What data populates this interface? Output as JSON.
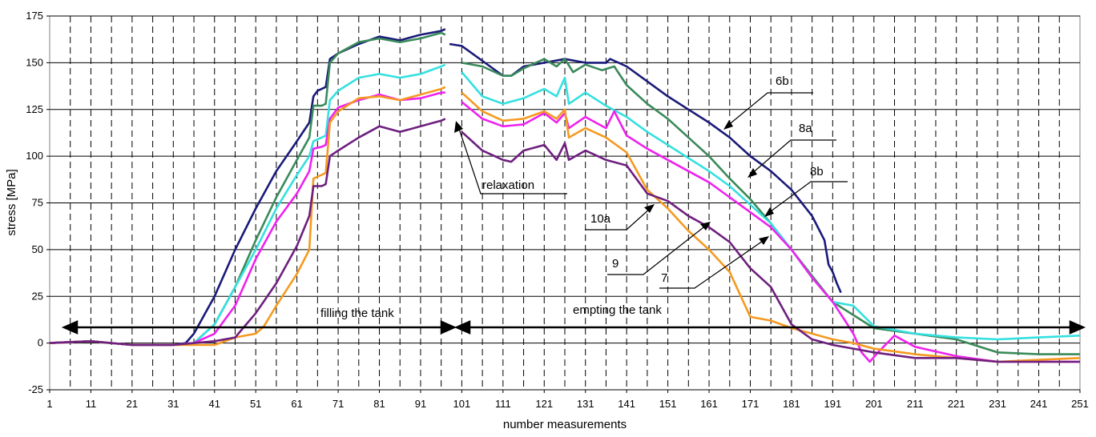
{
  "chart_data": {
    "type": "line",
    "title": "",
    "xlabel": "number measurements",
    "ylabel": "stress [MPa]",
    "xlim": [
      1,
      251
    ],
    "ylim": [
      -25,
      175
    ],
    "x_ticks": [
      1,
      11,
      21,
      31,
      41,
      51,
      61,
      71,
      81,
      91,
      101,
      111,
      121,
      131,
      141,
      151,
      161,
      171,
      181,
      191,
      201,
      211,
      221,
      231,
      241,
      251
    ],
    "y_ticks": [
      -25,
      0,
      25,
      50,
      75,
      100,
      125,
      150,
      175
    ],
    "grid": {
      "horizontal": "solid",
      "vertical": "dashed"
    },
    "series": [
      {
        "name": "6b",
        "color": "#1a1a7a",
        "points": [
          [
            1,
            0
          ],
          [
            11,
            1
          ],
          [
            21,
            -1
          ],
          [
            31,
            -1
          ],
          [
            34,
            0
          ],
          [
            36,
            5
          ],
          [
            41,
            25
          ],
          [
            46,
            50
          ],
          [
            51,
            72
          ],
          [
            56,
            92
          ],
          [
            61,
            108
          ],
          [
            64,
            118
          ],
          [
            65,
            132
          ],
          [
            66,
            135
          ],
          [
            67,
            136
          ],
          [
            68,
            137
          ],
          [
            69,
            152
          ],
          [
            71,
            155
          ],
          [
            76,
            160
          ],
          [
            81,
            164
          ],
          [
            86,
            162
          ],
          [
            91,
            165
          ],
          [
            96,
            167
          ],
          [
            97,
            168
          ],
          [
            null,
            null
          ],
          [
            98,
            160
          ],
          [
            101,
            159
          ],
          [
            106,
            151
          ],
          [
            111,
            143
          ],
          [
            113,
            143
          ],
          [
            116,
            148
          ],
          [
            121,
            150
          ],
          [
            126,
            152
          ],
          [
            131,
            150
          ],
          [
            136,
            150
          ],
          [
            137,
            152
          ],
          [
            141,
            148
          ],
          [
            146,
            140
          ],
          [
            151,
            132
          ],
          [
            156,
            125
          ],
          [
            161,
            118
          ],
          [
            166,
            110
          ],
          [
            171,
            100
          ],
          [
            176,
            92
          ],
          [
            181,
            82
          ],
          [
            186,
            68
          ],
          [
            189,
            55
          ],
          [
            190,
            42
          ],
          [
            191,
            38
          ],
          [
            192,
            32
          ],
          [
            193,
            27
          ]
        ]
      },
      {
        "name": "8a",
        "color": "#3a8a5a",
        "points": [
          [
            1,
            0
          ],
          [
            11,
            1
          ],
          [
            21,
            -1
          ],
          [
            31,
            -1
          ],
          [
            36,
            0
          ],
          [
            41,
            10
          ],
          [
            46,
            30
          ],
          [
            51,
            55
          ],
          [
            56,
            78
          ],
          [
            61,
            98
          ],
          [
            64,
            110
          ],
          [
            65,
            127
          ],
          [
            67,
            127
          ],
          [
            68,
            128
          ],
          [
            69,
            150
          ],
          [
            71,
            155
          ],
          [
            76,
            161
          ],
          [
            81,
            163
          ],
          [
            86,
            161
          ],
          [
            91,
            163
          ],
          [
            96,
            166
          ],
          [
            97,
            165
          ],
          [
            null,
            null
          ],
          [
            101,
            150
          ],
          [
            106,
            148
          ],
          [
            111,
            143
          ],
          [
            113,
            143
          ],
          [
            116,
            147
          ],
          [
            121,
            152
          ],
          [
            124,
            148
          ],
          [
            126,
            152
          ],
          [
            128,
            145
          ],
          [
            131,
            149
          ],
          [
            135,
            146
          ],
          [
            138,
            148
          ],
          [
            141,
            138
          ],
          [
            146,
            128
          ],
          [
            151,
            120
          ],
          [
            156,
            110
          ],
          [
            161,
            100
          ],
          [
            166,
            88
          ],
          [
            171,
            77
          ],
          [
            176,
            64
          ],
          [
            181,
            50
          ],
          [
            186,
            36
          ],
          [
            191,
            22
          ],
          [
            196,
            15
          ],
          [
            201,
            8
          ],
          [
            211,
            5
          ],
          [
            221,
            2
          ],
          [
            231,
            -5
          ],
          [
            241,
            -6
          ],
          [
            251,
            -6
          ]
        ]
      },
      {
        "name": "8b",
        "color": "#35e0e0",
        "points": [
          [
            1,
            0
          ],
          [
            11,
            1
          ],
          [
            21,
            -1
          ],
          [
            31,
            -1
          ],
          [
            36,
            0
          ],
          [
            41,
            10
          ],
          [
            46,
            30
          ],
          [
            51,
            50
          ],
          [
            56,
            72
          ],
          [
            61,
            90
          ],
          [
            64,
            100
          ],
          [
            65,
            108
          ],
          [
            67,
            110
          ],
          [
            68,
            111
          ],
          [
            69,
            130
          ],
          [
            71,
            135
          ],
          [
            76,
            142
          ],
          [
            81,
            144
          ],
          [
            86,
            142
          ],
          [
            91,
            144
          ],
          [
            96,
            148
          ],
          [
            97,
            149
          ],
          [
            null,
            null
          ],
          [
            101,
            145
          ],
          [
            106,
            132
          ],
          [
            111,
            128
          ],
          [
            116,
            131
          ],
          [
            121,
            136
          ],
          [
            124,
            132
          ],
          [
            126,
            142
          ],
          [
            127,
            128
          ],
          [
            131,
            134
          ],
          [
            136,
            127
          ],
          [
            141,
            121
          ],
          [
            146,
            113
          ],
          [
            151,
            106
          ],
          [
            156,
            99
          ],
          [
            161,
            92
          ],
          [
            166,
            84
          ],
          [
            171,
            74
          ],
          [
            176,
            64
          ],
          [
            181,
            50
          ],
          [
            186,
            35
          ],
          [
            191,
            22
          ],
          [
            196,
            20
          ],
          [
            201,
            9
          ],
          [
            211,
            5
          ],
          [
            221,
            3
          ],
          [
            231,
            2
          ],
          [
            241,
            3
          ],
          [
            251,
            4
          ]
        ]
      },
      {
        "name": "10a",
        "color": "#ee22ee",
        "points": [
          [
            1,
            0
          ],
          [
            11,
            1
          ],
          [
            21,
            -1
          ],
          [
            31,
            -1
          ],
          [
            36,
            0
          ],
          [
            41,
            5
          ],
          [
            46,
            20
          ],
          [
            51,
            45
          ],
          [
            56,
            65
          ],
          [
            61,
            80
          ],
          [
            64,
            92
          ],
          [
            65,
            104
          ],
          [
            67,
            105
          ],
          [
            68,
            106
          ],
          [
            69,
            120
          ],
          [
            71,
            126
          ],
          [
            76,
            130
          ],
          [
            81,
            133
          ],
          [
            86,
            130
          ],
          [
            91,
            131
          ],
          [
            96,
            134
          ],
          [
            97,
            134
          ],
          [
            null,
            null
          ],
          [
            101,
            129
          ],
          [
            106,
            120
          ],
          [
            111,
            116
          ],
          [
            116,
            117
          ],
          [
            121,
            123
          ],
          [
            124,
            118
          ],
          [
            126,
            123
          ],
          [
            127,
            115
          ],
          [
            131,
            121
          ],
          [
            136,
            115
          ],
          [
            138,
            124
          ],
          [
            141,
            111
          ],
          [
            146,
            104
          ],
          [
            151,
            98
          ],
          [
            156,
            92
          ],
          [
            161,
            86
          ],
          [
            166,
            78
          ],
          [
            171,
            70
          ],
          [
            176,
            62
          ],
          [
            181,
            50
          ],
          [
            186,
            35
          ],
          [
            191,
            22
          ],
          [
            194,
            12
          ],
          [
            196,
            5
          ],
          [
            198,
            -5
          ],
          [
            200,
            -10
          ],
          [
            202,
            -5
          ],
          [
            206,
            4
          ],
          [
            211,
            -2
          ],
          [
            221,
            -7
          ],
          [
            231,
            -10
          ],
          [
            241,
            -10
          ],
          [
            251,
            -10
          ]
        ]
      },
      {
        "name": "9",
        "color": "#f59a20",
        "points": [
          [
            1,
            0
          ],
          [
            11,
            1
          ],
          [
            21,
            -1
          ],
          [
            31,
            -1
          ],
          [
            41,
            -1
          ],
          [
            46,
            3
          ],
          [
            51,
            5
          ],
          [
            53,
            9
          ],
          [
            56,
            20
          ],
          [
            61,
            37
          ],
          [
            64,
            50
          ],
          [
            65,
            88
          ],
          [
            67,
            90
          ],
          [
            68,
            91
          ],
          [
            69,
            118
          ],
          [
            71,
            124
          ],
          [
            76,
            131
          ],
          [
            81,
            132
          ],
          [
            86,
            130
          ],
          [
            91,
            133
          ],
          [
            96,
            136
          ],
          [
            97,
            137
          ],
          [
            null,
            null
          ],
          [
            101,
            134
          ],
          [
            106,
            124
          ],
          [
            111,
            119
          ],
          [
            116,
            120
          ],
          [
            121,
            124
          ],
          [
            124,
            120
          ],
          [
            126,
            125
          ],
          [
            127,
            110
          ],
          [
            131,
            115
          ],
          [
            136,
            110
          ],
          [
            141,
            102
          ],
          [
            146,
            82
          ],
          [
            151,
            72
          ],
          [
            156,
            60
          ],
          [
            161,
            50
          ],
          [
            166,
            38
          ],
          [
            171,
            14
          ],
          [
            176,
            12
          ],
          [
            181,
            8
          ],
          [
            186,
            5
          ],
          [
            191,
            2
          ],
          [
            196,
            0
          ],
          [
            201,
            -3
          ],
          [
            211,
            -6
          ],
          [
            221,
            -8
          ],
          [
            231,
            -10
          ],
          [
            241,
            -9
          ],
          [
            251,
            -8
          ]
        ]
      },
      {
        "name": "7",
        "color": "#6e1f7f",
        "points": [
          [
            1,
            0
          ],
          [
            11,
            1
          ],
          [
            21,
            -1
          ],
          [
            31,
            -1
          ],
          [
            41,
            1
          ],
          [
            46,
            3
          ],
          [
            51,
            16
          ],
          [
            56,
            32
          ],
          [
            61,
            52
          ],
          [
            64,
            68
          ],
          [
            65,
            84
          ],
          [
            67,
            84
          ],
          [
            68,
            85
          ],
          [
            69,
            100
          ],
          [
            71,
            103
          ],
          [
            76,
            110
          ],
          [
            81,
            116
          ],
          [
            86,
            113
          ],
          [
            91,
            116
          ],
          [
            96,
            119
          ],
          [
            97,
            120
          ],
          [
            null,
            null
          ],
          [
            101,
            113
          ],
          [
            106,
            103
          ],
          [
            111,
            98
          ],
          [
            113,
            97
          ],
          [
            116,
            103
          ],
          [
            121,
            106
          ],
          [
            124,
            98
          ],
          [
            126,
            107
          ],
          [
            127,
            98
          ],
          [
            131,
            103
          ],
          [
            136,
            98
          ],
          [
            141,
            95
          ],
          [
            146,
            80
          ],
          [
            151,
            76
          ],
          [
            156,
            68
          ],
          [
            161,
            62
          ],
          [
            166,
            54
          ],
          [
            171,
            40
          ],
          [
            176,
            30
          ],
          [
            181,
            10
          ],
          [
            186,
            2
          ],
          [
            191,
            -1
          ],
          [
            196,
            -3
          ],
          [
            201,
            -5
          ],
          [
            211,
            -8
          ],
          [
            221,
            -8
          ],
          [
            231,
            -10
          ],
          [
            241,
            -10
          ],
          [
            251,
            -10
          ]
        ]
      }
    ],
    "annotations": {
      "series_labels": [
        "6b",
        "8a",
        "8b",
        "10a",
        "9",
        "7"
      ],
      "relaxation": "relaxation",
      "filling": "filling the tank",
      "empting": "empting the tank"
    }
  }
}
